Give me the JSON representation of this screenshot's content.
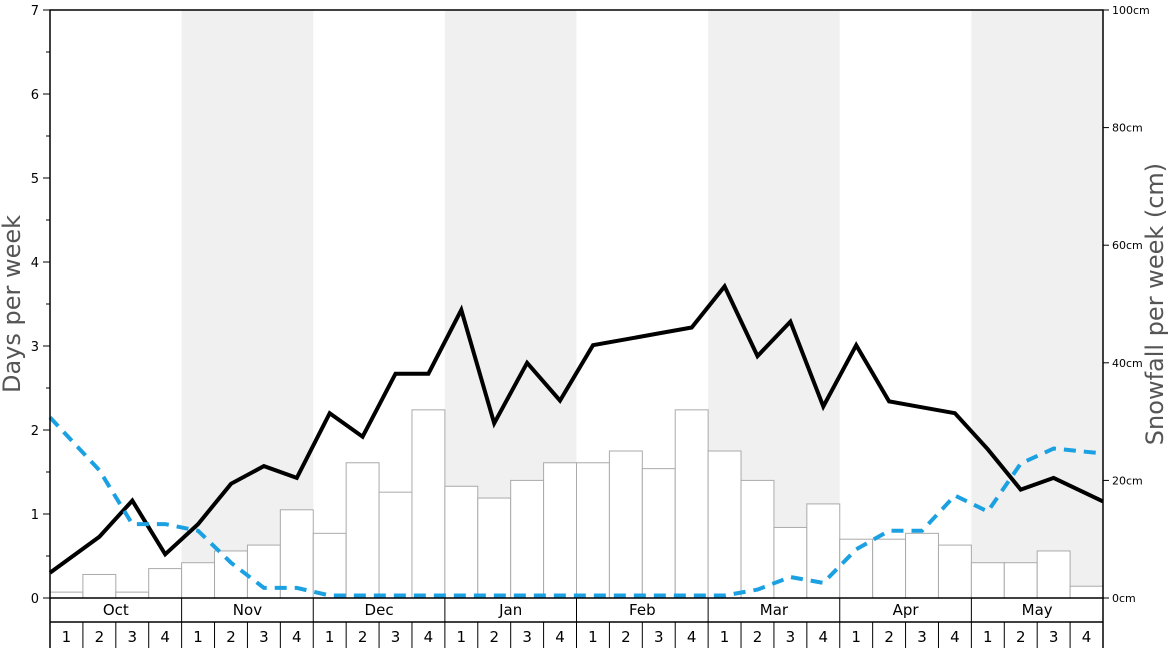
{
  "chart_data": {
    "type": "bar",
    "ylabel_left": "Days per week",
    "ylabel_right": "Snowfall per week (cm)",
    "ylim_left": [
      0,
      7
    ],
    "ylim_right": [
      0,
      100
    ],
    "left_ticks": [
      "0",
      "1",
      "2",
      "3",
      "4",
      "5",
      "6",
      "7"
    ],
    "right_ticks": [
      "0cm",
      "20cm",
      "40cm",
      "60cm",
      "80cm",
      "100cm"
    ],
    "months": [
      "Oct",
      "Nov",
      "Dec",
      "Jan",
      "Feb",
      "Mar",
      "Apr",
      "May"
    ],
    "weeks": [
      "1",
      "2",
      "3",
      "4"
    ],
    "grid": false,
    "bars": {
      "axis": "right",
      "values": [
        1,
        4,
        1,
        5,
        6,
        8,
        9,
        15,
        11,
        23,
        18,
        32,
        19,
        17,
        20,
        23,
        23,
        25,
        22,
        32,
        25,
        20,
        12,
        16,
        10,
        10,
        11,
        9,
        6,
        6,
        8,
        2
      ]
    },
    "series": [
      {
        "style": "solid",
        "color": "#000000",
        "axis": "left",
        "values": [
          0.3,
          0.73,
          1.16,
          0.52,
          0.88,
          1.36,
          1.57,
          1.43,
          2.2,
          1.92,
          2.67,
          2.67,
          3.43,
          2.08,
          2.8,
          2.35,
          3.01,
          3.08,
          3.15,
          3.22,
          3.71,
          2.88,
          3.29,
          2.28,
          3.01,
          2.34,
          2.27,
          2.2,
          1.77,
          1.29,
          1.43,
          1.15
        ]
      },
      {
        "style": "dashed",
        "color": "#1ba1e2",
        "axis": "left",
        "values": [
          2.15,
          1.52,
          0.88,
          0.88,
          0.8,
          0.42,
          0.12,
          0.12,
          0.03,
          0.03,
          0.03,
          0.03,
          0.03,
          0.03,
          0.03,
          0.03,
          0.03,
          0.03,
          0.03,
          0.03,
          0.03,
          0.1,
          0.25,
          0.18,
          0.58,
          0.8,
          0.8,
          1.22,
          1.03,
          1.6,
          1.78,
          1.72
        ]
      }
    ]
  }
}
